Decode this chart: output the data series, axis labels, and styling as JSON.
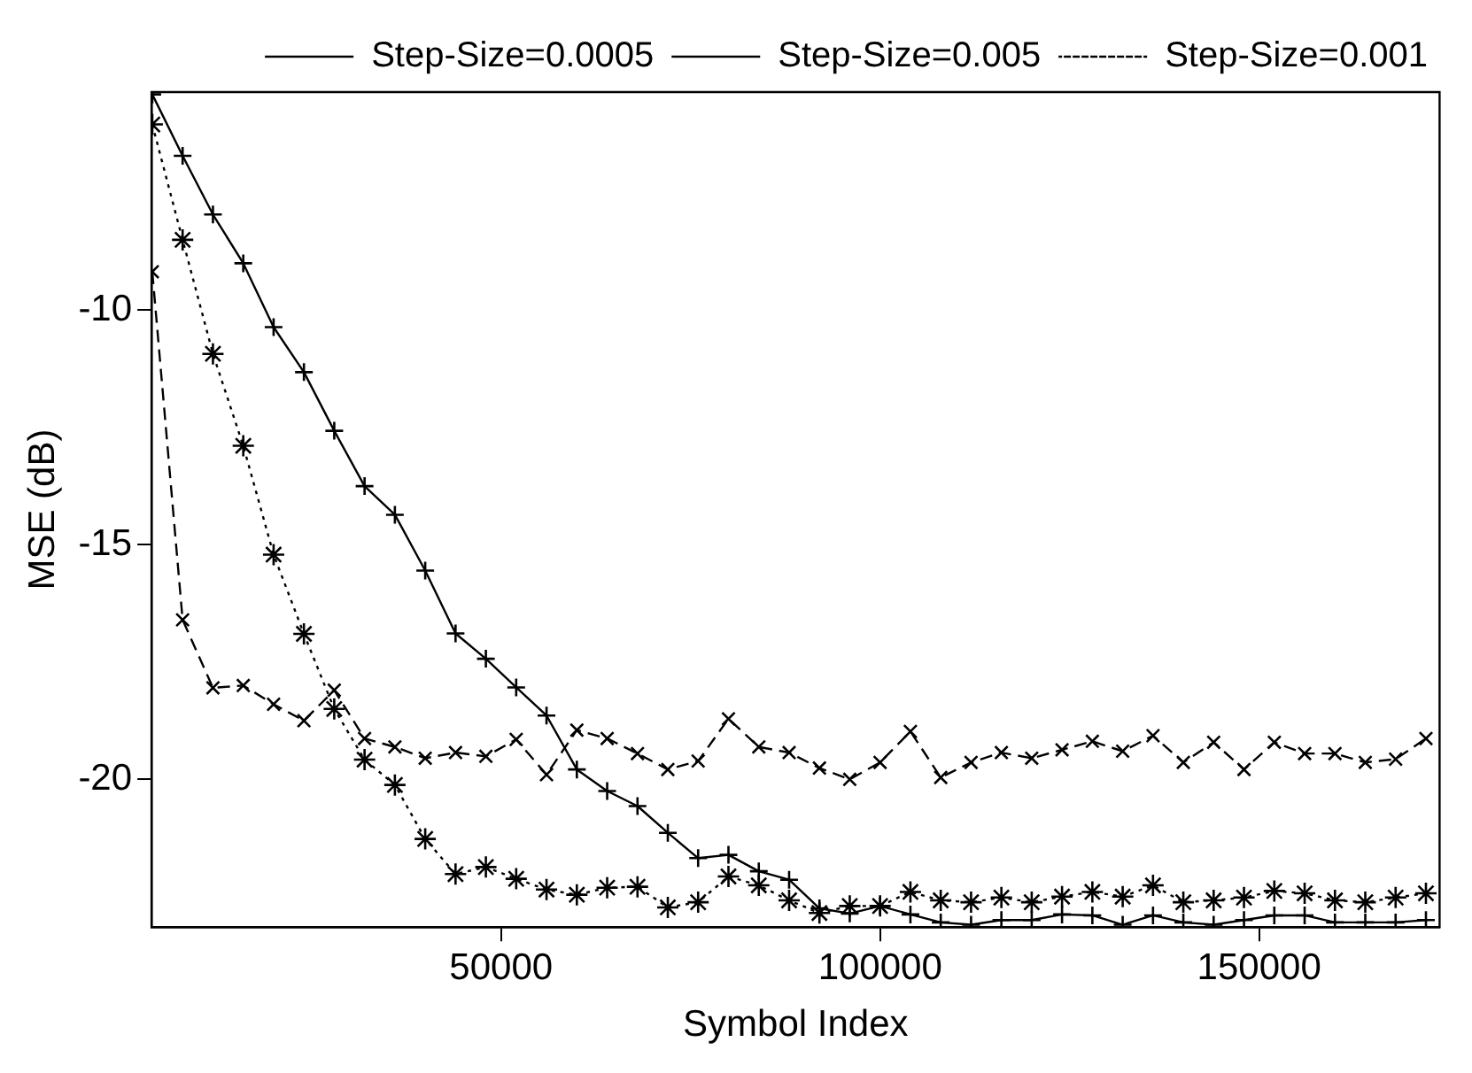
{
  "chart_data": {
    "type": "line",
    "xlabel": "Symbol Index",
    "ylabel": "MSE (dB)",
    "x": [
      4000,
      8000,
      12000,
      16000,
      20000,
      24000,
      28000,
      32000,
      36000,
      40000,
      44000,
      48000,
      52000,
      56000,
      60000,
      64000,
      68000,
      72000,
      76000,
      80000,
      84000,
      88000,
      92000,
      96000,
      100000,
      104000,
      108000,
      112000,
      116000,
      120000,
      124000,
      128000,
      132000,
      136000,
      140000,
      144000,
      148000,
      152000,
      156000,
      160000,
      164000,
      168000,
      172000
    ],
    "series": [
      {
        "name": "Step-Size=0.0005",
        "color": "#000000",
        "marker": "plus",
        "line_style": "solid",
        "values": [
          -5.4,
          -6.71,
          -7.96,
          -9.0,
          -10.36,
          -11.32,
          -12.57,
          -13.75,
          -14.36,
          -15.55,
          -16.89,
          -17.43,
          -18.04,
          -18.64,
          -19.79,
          -20.25,
          -20.57,
          -21.14,
          -21.68,
          -21.61,
          -21.96,
          -22.14,
          -22.75,
          -22.86,
          -22.7,
          -22.88,
          -23.05,
          -23.1,
          -23.0,
          -23.0,
          -22.88,
          -22.9,
          -23.1,
          -22.9,
          -23.05,
          -23.1,
          -23.0,
          -22.9,
          -22.9,
          -23.05,
          -23.05,
          -23.05,
          -23.0
        ]
      },
      {
        "name": "Step-Size=0.005",
        "color": "#000000",
        "marker": "x",
        "line_style": "dashed",
        "values": [
          -9.18,
          -16.6,
          -18.05,
          -18.0,
          -18.4,
          -18.75,
          -18.1,
          -19.13,
          -19.31,
          -19.55,
          -19.43,
          -19.51,
          -19.15,
          -19.9,
          -18.95,
          -19.13,
          -19.45,
          -19.79,
          -19.61,
          -18.71,
          -19.31,
          -19.43,
          -19.76,
          -20.0,
          -19.64,
          -18.98,
          -19.96,
          -19.64,
          -19.43,
          -19.55,
          -19.37,
          -19.19,
          -19.4,
          -19.07,
          -19.64,
          -19.21,
          -19.79,
          -19.21,
          -19.45,
          -19.45,
          -19.64,
          -19.57,
          -19.13
        ]
      },
      {
        "name": "Step-Size=0.001",
        "color": "#000000",
        "marker": "cross",
        "line_style": "dotted",
        "values": [
          -6.04,
          -8.5,
          -10.93,
          -12.89,
          -15.21,
          -16.9,
          -18.5,
          -19.58,
          -20.12,
          -21.27,
          -22.02,
          -21.87,
          -22.12,
          -22.35,
          -22.46,
          -22.31,
          -22.29,
          -22.73,
          -22.62,
          -22.07,
          -22.26,
          -22.58,
          -22.85,
          -22.7,
          -22.7,
          -22.4,
          -22.58,
          -22.62,
          -22.52,
          -22.62,
          -22.5,
          -22.4,
          -22.5,
          -22.26,
          -22.62,
          -22.58,
          -22.52,
          -22.38,
          -22.43,
          -22.58,
          -22.62,
          -22.52,
          -22.43
        ]
      }
    ],
    "xlim": [
      3900,
      173800
    ],
    "xticks": [
      50000,
      100000,
      150000
    ],
    "ylim": [
      -23.15,
      -5.35
    ],
    "yticks": [
      -10,
      -15,
      -20
    ],
    "grid": false,
    "legend": "top right"
  }
}
